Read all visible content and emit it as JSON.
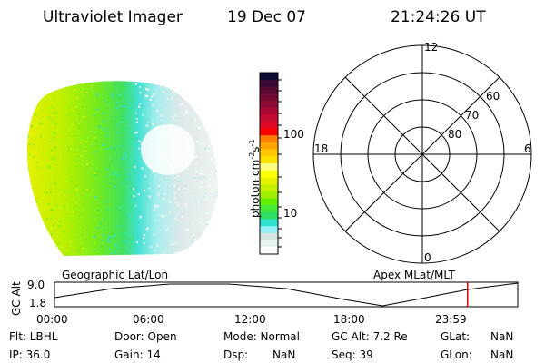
{
  "header": {
    "instrument": "Ultraviolet Imager",
    "date": "19 Dec 07",
    "time": "21:24:26 UT"
  },
  "colorbar": {
    "label": "photon cm",
    "label_sup1": "-2",
    "label_s": "s",
    "label_sup2": "-1",
    "ticks": [
      "100",
      "10"
    ],
    "colors": [
      "#0c0c34",
      "#3a0834",
      "#560a34",
      "#720a34",
      "#8c0a34",
      "#a80a34",
      "#c60a34",
      "#e00a28",
      "#ff0000",
      "#ff8000",
      "#ffa400",
      "#ffc800",
      "#ffe000",
      "#ffff80",
      "#ffff00",
      "#e6f200",
      "#c6f000",
      "#a0f000",
      "#60f000",
      "#44e838",
      "#30e060",
      "#30e0d4",
      "#94f0f4",
      "#d4e2e2",
      "#e8f4f0",
      "#ffffff"
    ]
  },
  "polar": {
    "mlt_labels": [
      "12",
      "6",
      "0",
      "18"
    ],
    "lat_labels": [
      "80",
      "70",
      "60"
    ]
  },
  "orbit": {
    "left_label": "Geographic Lat/Lon",
    "right_label": "Apex MLat/MLT",
    "ylabel": "GC Alt",
    "ymax": "9.0",
    "ymin": "1.8",
    "xticks": [
      "00:00",
      "06:00",
      "12:00",
      "18:00",
      "23:59"
    ],
    "current_time_hours": 21.4,
    "marker_color": "#dd0000"
  },
  "status": {
    "flt": "Flt: LBHL",
    "ip": "IP: 36.0",
    "door": "Door: Open",
    "gain": "Gain: 14",
    "mode": "Mode: Normal",
    "dsp_label": "Dsp:",
    "dsp_value": "NaN",
    "gcalt": "GC Alt: 7.2 Re",
    "seq": "Seq: 39",
    "glat_label": "GLat:",
    "glat_value": "NaN",
    "glon_label": "GLon:",
    "glon_value": "NaN"
  }
}
